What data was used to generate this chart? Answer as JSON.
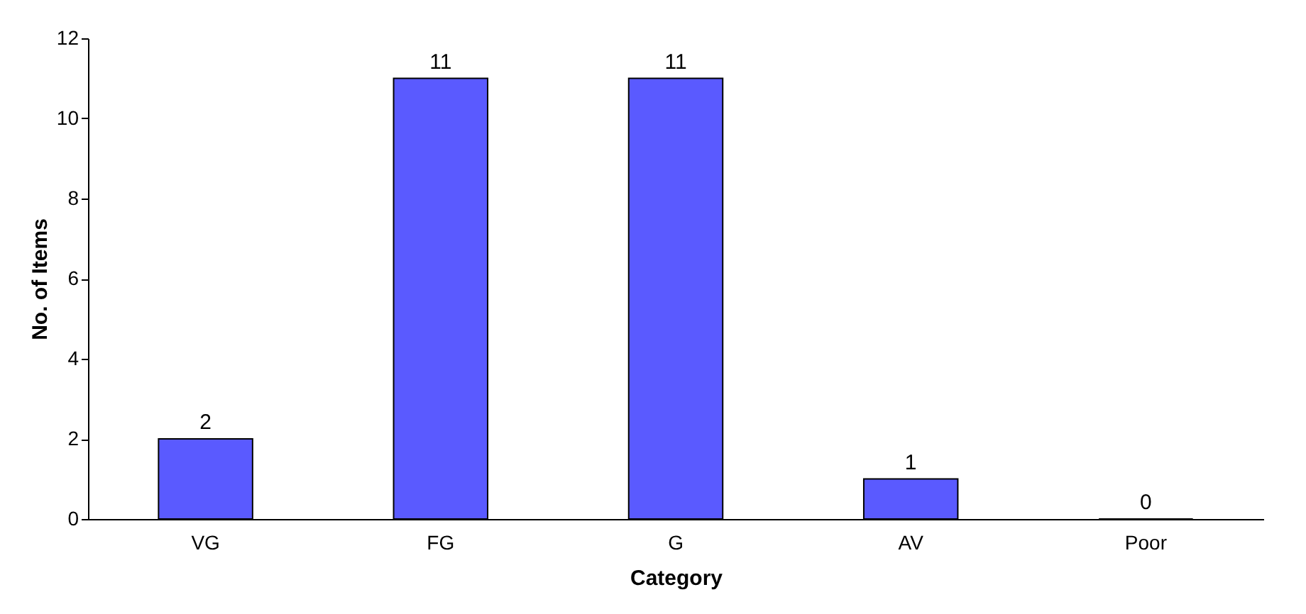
{
  "chart_data": {
    "type": "bar",
    "xlabel": "Category",
    "ylabel": "No. of Items",
    "categories": [
      "VG",
      "FG",
      "G",
      "AV",
      "Poor"
    ],
    "values": [
      2,
      11,
      11,
      1,
      0
    ],
    "color": "#5a5aff",
    "ylim": [
      0,
      12
    ],
    "yticks": [
      0,
      2,
      4,
      6,
      8,
      10,
      12
    ],
    "data_labels": true,
    "grid": false
  }
}
